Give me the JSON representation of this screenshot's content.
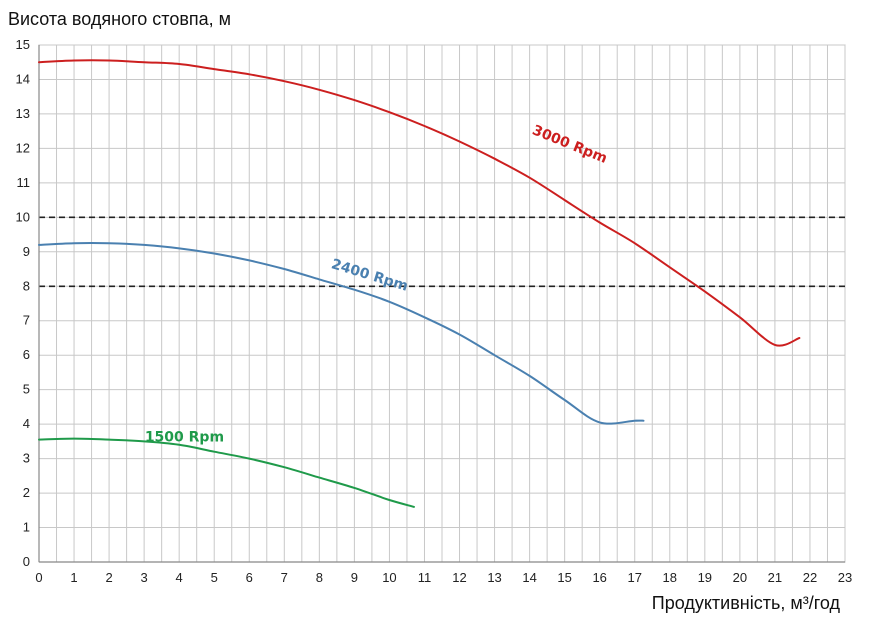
{
  "chart_data": {
    "type": "line",
    "title": "",
    "xlabel": "Продуктивність, м³/год",
    "ylabel": "Висота водяного стовпа, м",
    "xlim": [
      0,
      23
    ],
    "ylim": [
      0,
      15
    ],
    "x_ticks": [
      0,
      1,
      2,
      3,
      4,
      5,
      6,
      7,
      8,
      9,
      10,
      11,
      12,
      13,
      14,
      15,
      16,
      17,
      18,
      19,
      20,
      21,
      22,
      23
    ],
    "y_ticks": [
      0,
      1,
      2,
      3,
      4,
      5,
      6,
      7,
      8,
      9,
      10,
      11,
      12,
      13,
      14,
      15
    ],
    "x_minor_step": 0.5,
    "grid": true,
    "reference_lines": [
      {
        "y": 10,
        "style": "dashed",
        "color": "#222222"
      },
      {
        "y": 8,
        "style": "dashed",
        "color": "#222222"
      }
    ],
    "series": [
      {
        "name": "3000 Rpm",
        "color": "#cc1f1f",
        "label_anchor": {
          "x": 15.1,
          "y": 12.0,
          "angle": 22
        },
        "x": [
          0,
          1,
          2,
          3,
          4,
          5,
          6,
          7,
          8,
          9,
          10,
          11,
          12,
          13,
          14,
          15,
          16,
          17,
          18,
          19,
          20,
          21,
          21.7
        ],
        "y": [
          14.5,
          14.55,
          14.55,
          14.5,
          14.45,
          14.3,
          14.15,
          13.95,
          13.7,
          13.4,
          13.05,
          12.65,
          12.2,
          11.7,
          11.15,
          10.5,
          9.85,
          9.25,
          8.55,
          7.85,
          7.1,
          6.3,
          6.5
        ]
      },
      {
        "name": "2400 Rpm",
        "color": "#4a80b0",
        "label_anchor": {
          "x": 9.4,
          "y": 8.2,
          "angle": 17
        },
        "x": [
          0,
          1,
          2,
          3,
          4,
          5,
          6,
          7,
          8,
          9,
          10,
          11,
          12,
          13,
          14,
          15,
          16,
          17,
          17.25
        ],
        "y": [
          9.2,
          9.25,
          9.25,
          9.2,
          9.1,
          8.95,
          8.75,
          8.5,
          8.2,
          7.9,
          7.55,
          7.1,
          6.6,
          6.0,
          5.4,
          4.7,
          4.05,
          4.1,
          4.1
        ]
      },
      {
        "name": "1500 Rpm",
        "color": "#1f9a4a",
        "label_anchor": {
          "x": 4.15,
          "y": 3.5,
          "angle": 0
        },
        "x": [
          0,
          1,
          2,
          3,
          4,
          5,
          6,
          7,
          8,
          9,
          10,
          10.7
        ],
        "y": [
          3.55,
          3.58,
          3.55,
          3.5,
          3.4,
          3.2,
          3.0,
          2.75,
          2.45,
          2.15,
          1.8,
          1.6
        ]
      }
    ]
  }
}
